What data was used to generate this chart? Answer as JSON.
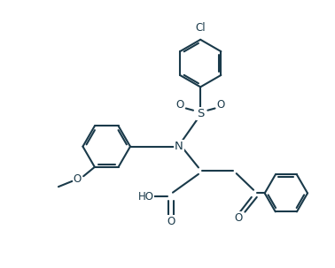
{
  "bg_color": "#ffffff",
  "line_color": "#1a3a4a",
  "line_width": 1.5,
  "font_size": 8.5,
  "figsize": [
    3.78,
    3.03
  ],
  "dpi": 100,
  "xlim": [
    0,
    10
  ],
  "ylim": [
    0,
    8
  ]
}
